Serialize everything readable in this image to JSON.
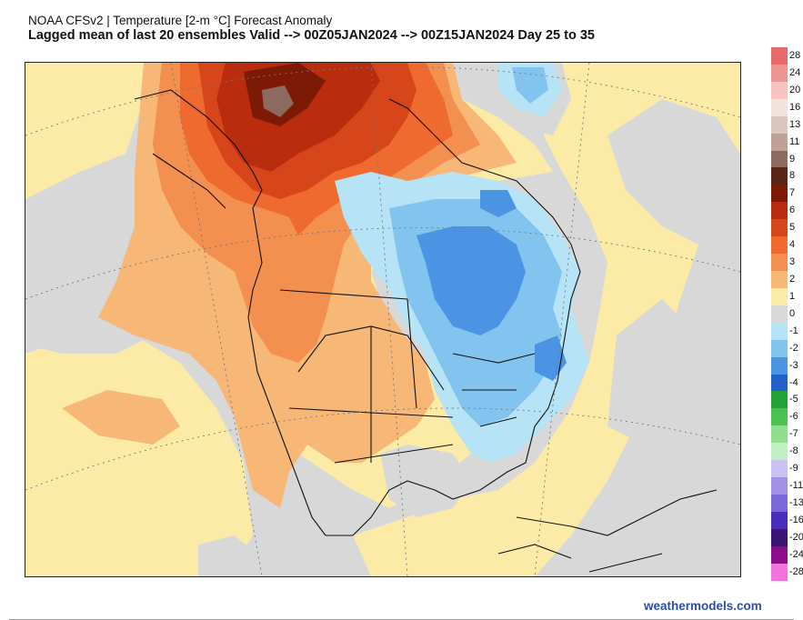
{
  "header": {
    "title": "NOAA CFSv2 | Temperature [2-m °C] Forecast Anomaly",
    "subtitle": "Lagged mean of last 20 ensembles Valid --> 00Z05JAN2024 --> 00Z15JAN2024  Day 25 to 35"
  },
  "legend": {
    "labels": [
      "28",
      "24",
      "20",
      "16",
      "13",
      "11",
      "9",
      "8",
      "7",
      "6",
      "5",
      "4",
      "3",
      "2",
      "1",
      "0",
      "-1",
      "-2",
      "-3",
      "-4",
      "-5",
      "-6",
      "-7",
      "-8",
      "-9",
      "-11",
      "-13",
      "-16",
      "-20",
      "-24",
      "-28"
    ],
    "colors": [
      "#e86b6b",
      "#f09595",
      "#f7c3c3",
      "#f3e3df",
      "#ddc6bd",
      "#bfa197",
      "#8c6a60",
      "#5a2418",
      "#7d1a06",
      "#b92c0d",
      "#d7451a",
      "#ee6a2e",
      "#f38f4f",
      "#f6b777",
      "#fbeba6",
      "#d9d9d9",
      "#b6e3f5",
      "#82c4ef",
      "#4b94e4",
      "#2160c8",
      "#22a33a",
      "#49c24f",
      "#8ee08f",
      "#c2efc2",
      "#c9c2f2",
      "#a190ea",
      "#7a67db",
      "#4a2cba",
      "#3c1478",
      "#8d0c8d",
      "#f372dc"
    ]
  },
  "map": {
    "colors": {
      "sea_neutral": "#d8d8d8",
      "warm1": "#fbeba6",
      "warm2": "#f6b777",
      "warm3": "#f38f4f",
      "warm4": "#ee6a2e",
      "warm5": "#d7451a",
      "warm6": "#b92c0d",
      "warm7": "#7d1a06",
      "peak": "#8c6a60",
      "cool1": "#b6e3f5",
      "cool2": "#82c4ef",
      "cool3": "#4b94e4"
    }
  },
  "footer": {
    "credit": "weathermodels.com"
  }
}
